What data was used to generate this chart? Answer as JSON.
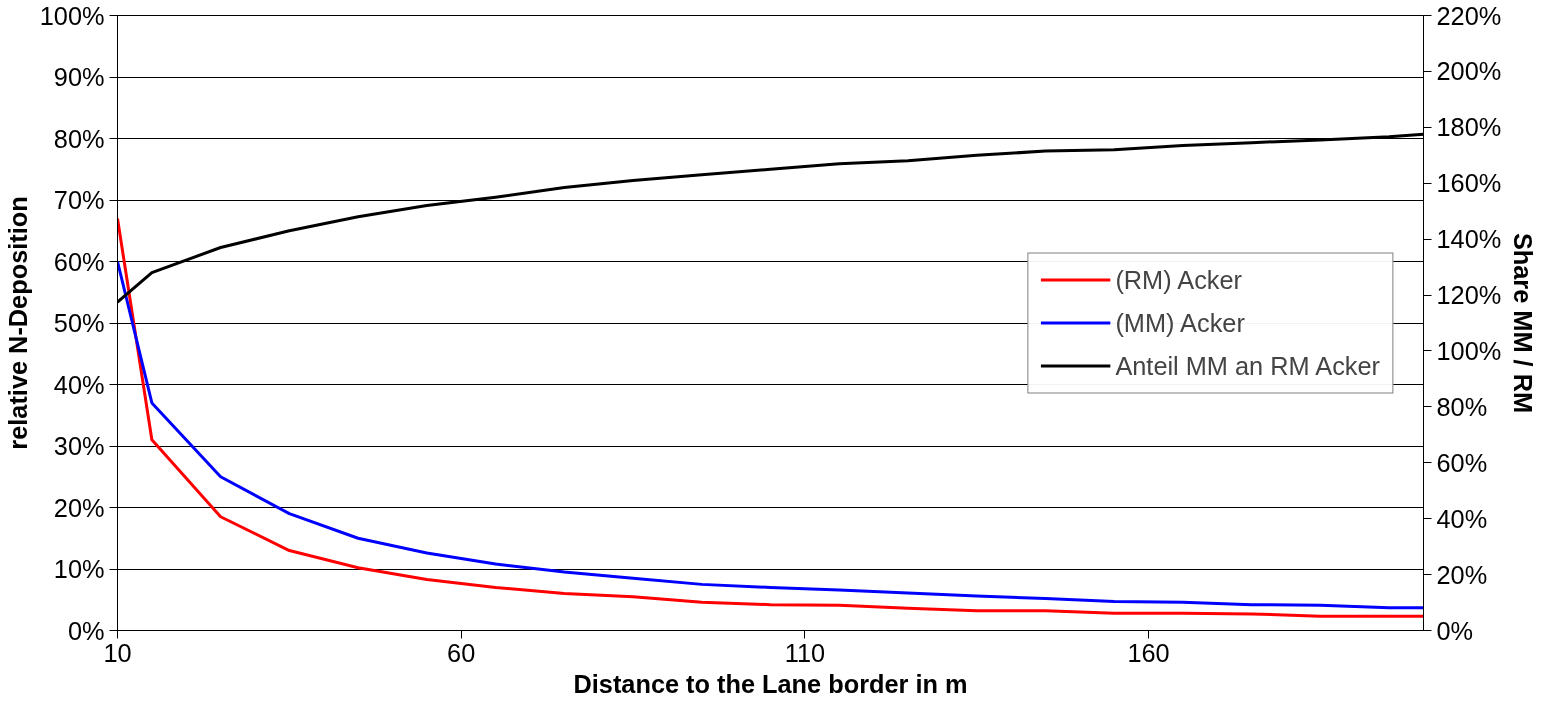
{
  "chart_data": {
    "type": "line",
    "xlabel": "Distance to the Lane border in m",
    "ylabel": "relative N-Deposition",
    "y2label": "Share MM / RM",
    "x": [
      10,
      15,
      25,
      35,
      45,
      55,
      65,
      75,
      85,
      95,
      105,
      115,
      125,
      135,
      145,
      155,
      165,
      175,
      185,
      195,
      200
    ],
    "series": [
      {
        "name": "(RM) Acker",
        "color": "#ff0000",
        "values": [
          67,
          31,
          18.5,
          13,
          10.2,
          8.3,
          7,
          6,
          5.5,
          4.6,
          4.2,
          4.1,
          3.6,
          3.2,
          3.2,
          2.8,
          2.8,
          2.7,
          2.3,
          2.3,
          2.3
        ]
      },
      {
        "name": "(MM) Acker",
        "color": "#0000ff",
        "values": [
          60,
          37,
          25,
          19,
          15,
          12.6,
          10.8,
          9.5,
          8.5,
          7.5,
          7,
          6.6,
          6.1,
          5.6,
          5.2,
          4.7,
          4.6,
          4.2,
          4.1,
          3.7,
          3.7
        ]
      },
      {
        "name": "Anteil MM an RM Acker",
        "color": "#000000",
        "axis": "y2",
        "values": [
          117.5,
          128,
          137,
          143,
          148,
          152,
          155,
          158.5,
          161,
          163,
          165,
          167,
          168,
          170,
          171.5,
          172,
          173.5,
          174.5,
          175.5,
          176.6,
          177.5
        ]
      }
    ],
    "xlim": [
      10,
      200
    ],
    "xticks": [
      10,
      60,
      110,
      160
    ],
    "ylim": [
      0,
      100
    ],
    "yticks": [
      {
        "value": 0,
        "label": "0%"
      },
      {
        "value": 10,
        "label": "10%"
      },
      {
        "value": 20,
        "label": "20%"
      },
      {
        "value": 30,
        "label": "30%"
      },
      {
        "value": 40,
        "label": "40%"
      },
      {
        "value": 50,
        "label": "50%"
      },
      {
        "value": 60,
        "label": "60%"
      },
      {
        "value": 70,
        "label": "70%"
      },
      {
        "value": 80,
        "label": "80%"
      },
      {
        "value": 90,
        "label": "90%"
      },
      {
        "value": 100,
        "label": "100%"
      }
    ],
    "y2lim": [
      0,
      220
    ],
    "y2ticks": [
      {
        "value": 0,
        "label": "0%"
      },
      {
        "value": 20,
        "label": "20%"
      },
      {
        "value": 40,
        "label": "40%"
      },
      {
        "value": 60,
        "label": "60%"
      },
      {
        "value": 80,
        "label": "80%"
      },
      {
        "value": 100,
        "label": "100%"
      },
      {
        "value": 120,
        "label": "120%"
      },
      {
        "value": 140,
        "label": "140%"
      },
      {
        "value": 160,
        "label": "160%"
      },
      {
        "value": 180,
        "label": "180%"
      },
      {
        "value": 200,
        "label": "200%"
      },
      {
        "value": 220,
        "label": "220%"
      }
    ],
    "grid": "y",
    "legend": "right",
    "line_style": "solid"
  }
}
